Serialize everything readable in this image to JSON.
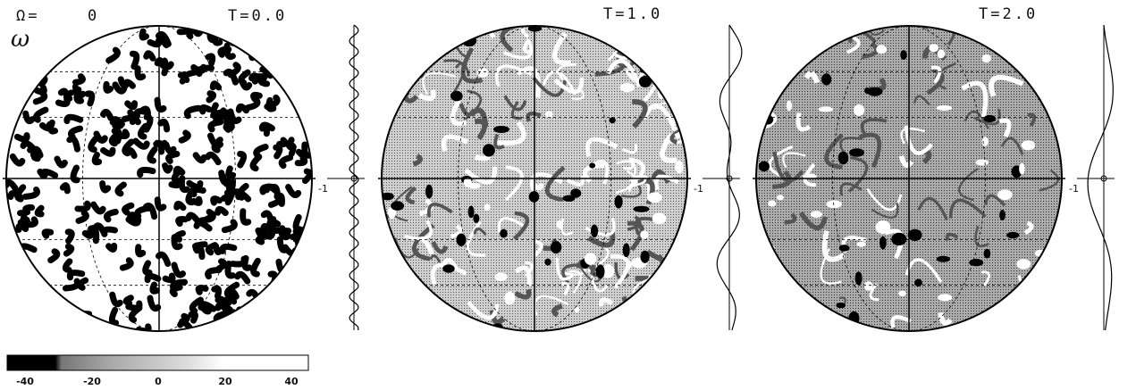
{
  "header": {
    "omega_label": "Ω=",
    "omega_value": "0",
    "symbol": "ω"
  },
  "panels": [
    {
      "time": "T=0.0",
      "axis_label": "-1"
    },
    {
      "time": "T=1.0",
      "axis_label": "-1"
    },
    {
      "time": "T=2.0",
      "axis_label": "-1"
    }
  ],
  "colorbar": {
    "labels": [
      "-40",
      "-20",
      "0",
      "20",
      "40"
    ]
  }
}
